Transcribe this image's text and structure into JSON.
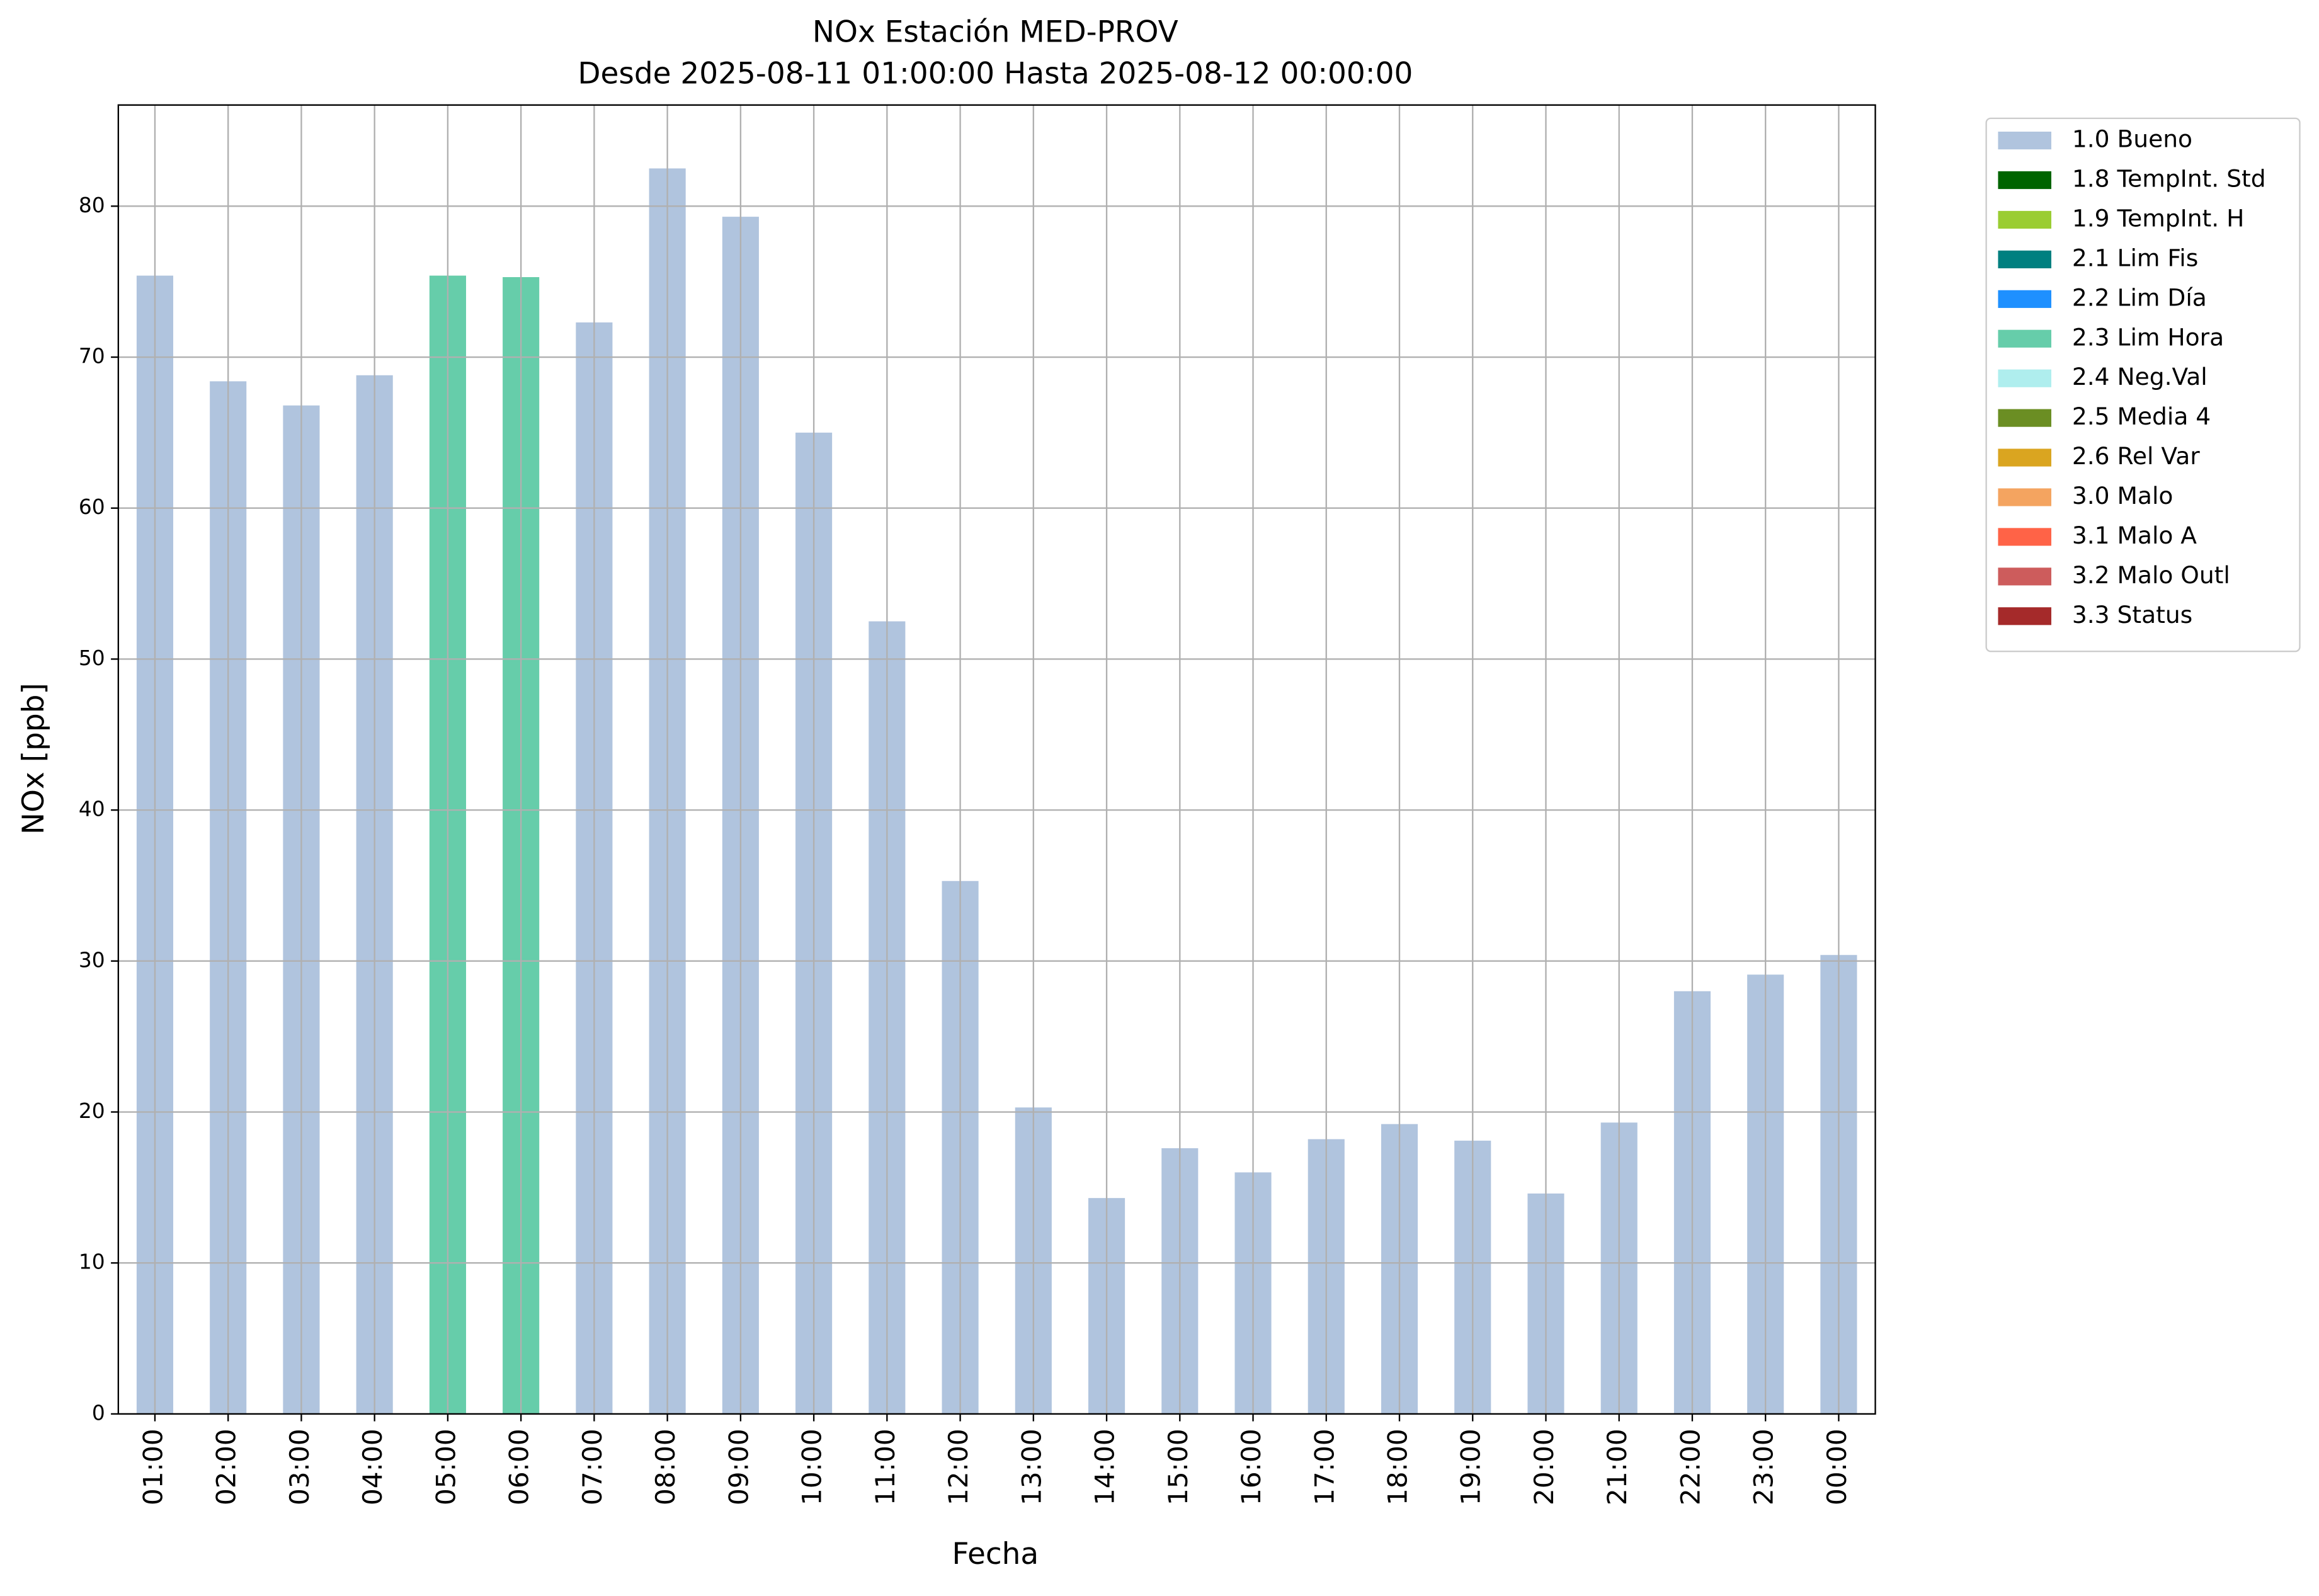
{
  "chart_data": {
    "type": "bar",
    "stacked": true,
    "title": "NOx Estación MED-PROV",
    "subtitle": "Desde 2025-08-11 01:00:00 Hasta 2025-08-12 00:00:00",
    "x_label": "Fecha",
    "y_label": "NOx [ppb]",
    "categories": [
      "01:00",
      "02:00",
      "03:00",
      "04:00",
      "05:00",
      "06:00",
      "07:00",
      "08:00",
      "09:00",
      "10:00",
      "11:00",
      "12:00",
      "13:00",
      "14:00",
      "15:00",
      "16:00",
      "17:00",
      "18:00",
      "19:00",
      "20:00",
      "21:00",
      "22:00",
      "23:00",
      "00:00"
    ],
    "ylim": [
      0,
      86.7
    ],
    "yticks": [
      0,
      10,
      20,
      30,
      40,
      50,
      60,
      70,
      80
    ],
    "grid": true,
    "legend": "outside upper right",
    "series": [
      {
        "name": "1.0 Bueno",
        "color": "#b0c4de",
        "values": [
          75.4,
          68.4,
          66.8,
          68.8,
          null,
          null,
          72.3,
          82.5,
          79.3,
          65.0,
          52.5,
          35.3,
          20.3,
          14.3,
          17.6,
          16.0,
          18.2,
          19.2,
          18.1,
          14.6,
          19.3,
          28.0,
          29.1,
          30.4
        ]
      },
      {
        "name": "1.8 TempInt. Std",
        "color": "#006400",
        "values": [
          null,
          null,
          null,
          null,
          null,
          null,
          null,
          null,
          null,
          null,
          null,
          null,
          null,
          null,
          null,
          null,
          null,
          null,
          null,
          null,
          null,
          null,
          null,
          null
        ]
      },
      {
        "name": "1.9 TempInt. H",
        "color": "#9acd32",
        "values": [
          null,
          null,
          null,
          null,
          null,
          null,
          null,
          null,
          null,
          null,
          null,
          null,
          null,
          null,
          null,
          null,
          null,
          null,
          null,
          null,
          null,
          null,
          null,
          null
        ]
      },
      {
        "name": "2.1 Lim Fis",
        "color": "#008080",
        "values": [
          null,
          null,
          null,
          null,
          null,
          null,
          null,
          null,
          null,
          null,
          null,
          null,
          null,
          null,
          null,
          null,
          null,
          null,
          null,
          null,
          null,
          null,
          null,
          null
        ]
      },
      {
        "name": "2.2 Lim Día",
        "color": "#1e90ff",
        "values": [
          null,
          null,
          null,
          null,
          null,
          null,
          null,
          null,
          null,
          null,
          null,
          null,
          null,
          null,
          null,
          null,
          null,
          null,
          null,
          null,
          null,
          null,
          null,
          null
        ]
      },
      {
        "name": "2.3 Lim Hora",
        "color": "#66cdaa",
        "values": [
          null,
          null,
          null,
          null,
          75.4,
          75.3,
          null,
          null,
          null,
          null,
          null,
          null,
          null,
          null,
          null,
          null,
          null,
          null,
          null,
          null,
          null,
          null,
          null,
          null
        ]
      },
      {
        "name": "2.4 Neg.Val",
        "color": "#afeeee",
        "values": [
          null,
          null,
          null,
          null,
          null,
          null,
          null,
          null,
          null,
          null,
          null,
          null,
          null,
          null,
          null,
          null,
          null,
          null,
          null,
          null,
          null,
          null,
          null,
          null
        ]
      },
      {
        "name": "2.5 Media 4",
        "color": "#6b8e23",
        "values": [
          null,
          null,
          null,
          null,
          null,
          null,
          null,
          null,
          null,
          null,
          null,
          null,
          null,
          null,
          null,
          null,
          null,
          null,
          null,
          null,
          null,
          null,
          null,
          null
        ]
      },
      {
        "name": "2.6 Rel Var",
        "color": "#daa520",
        "values": [
          null,
          null,
          null,
          null,
          null,
          null,
          null,
          null,
          null,
          null,
          null,
          null,
          null,
          null,
          null,
          null,
          null,
          null,
          null,
          null,
          null,
          null,
          null,
          null
        ]
      },
      {
        "name": "3.0 Malo",
        "color": "#f4a460",
        "values": [
          null,
          null,
          null,
          null,
          null,
          null,
          null,
          null,
          null,
          null,
          null,
          null,
          null,
          null,
          null,
          null,
          null,
          null,
          null,
          null,
          null,
          null,
          null,
          null
        ]
      },
      {
        "name": "3.1 Malo A",
        "color": "#ff6347",
        "values": [
          null,
          null,
          null,
          null,
          null,
          null,
          null,
          null,
          null,
          null,
          null,
          null,
          null,
          null,
          null,
          null,
          null,
          null,
          null,
          null,
          null,
          null,
          null,
          null
        ]
      },
      {
        "name": "3.2 Malo Outl",
        "color": "#cd5c5c",
        "values": [
          null,
          null,
          null,
          null,
          null,
          null,
          null,
          null,
          null,
          null,
          null,
          null,
          null,
          null,
          null,
          null,
          null,
          null,
          null,
          null,
          null,
          null,
          null,
          null
        ]
      },
      {
        "name": "3.3 Status",
        "color": "#a52a2a",
        "values": [
          null,
          null,
          null,
          null,
          null,
          null,
          null,
          null,
          null,
          null,
          null,
          null,
          null,
          null,
          null,
          null,
          null,
          null,
          null,
          null,
          null,
          null,
          null,
          null
        ]
      }
    ]
  }
}
